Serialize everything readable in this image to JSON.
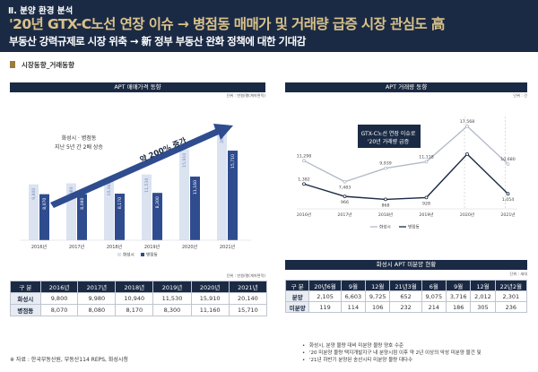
{
  "header": {
    "section": "Ⅱ. 분양 환경 분석",
    "title": "'20년 GTX-C노선 연장 이슈 → 병점동 매매가 및 거래량 급증 시장 관심도 高",
    "subtitle": "부동산 강력규제로 시장 위축 → 新 정부 부동산 완화 정책에 대한 기대감"
  },
  "section_title": "시장동향_거래동향",
  "left_panel": {
    "title": "APT 매매가격 동향",
    "unit": "단위 : 만원/평(계약면적)",
    "annotation_line1": "화성시 · 병점동",
    "annotation_line2": "지난 5년 간 2배 상승",
    "arrow_label": "약 200% 증가",
    "table_unit": "단위 : 만원/평(계약면적)",
    "table": {
      "corner": "구 분",
      "columns": [
        "2016년",
        "2017년",
        "2018년",
        "2019년",
        "2020년",
        "2021년"
      ],
      "rows": [
        {
          "label": "화성시",
          "values": [
            "9,800",
            "9,980",
            "10,940",
            "11,530",
            "15,910",
            "20,140"
          ]
        },
        {
          "label": "병점동",
          "values": [
            "8,070",
            "8,080",
            "8,170",
            "8,300",
            "11,160",
            "15,710"
          ]
        }
      ]
    },
    "source": "※ 자료 : 한국부동산원, 부동산114 REPS, 화성시청"
  },
  "right_panel": {
    "title": "APT 거래량 동향",
    "unit": "단위 : 건",
    "annotation_line1": "GTX-C노선 연장 이슈로",
    "annotation_line2": "'20년 거래량 급증",
    "table_title": "화성시 APT 미분양 현황",
    "table_unit": "단위 : 세대",
    "table": {
      "corner": "구 분",
      "columns": [
        "20년6월",
        "9월",
        "12월",
        "21년3월",
        "6월",
        "9월",
        "12월",
        "22년2월"
      ],
      "rows": [
        {
          "label": "분양",
          "values": [
            "2,105",
            "6,603",
            "9,725",
            "652",
            "9,075",
            "3,716",
            "2,012",
            "2,301"
          ]
        },
        {
          "label": "미분양",
          "values": [
            "119",
            "114",
            "106",
            "232",
            "214",
            "186",
            "305",
            "236"
          ]
        }
      ]
    },
    "notes": [
      "화성시, 분양 물량 대비 미분양 물량 양호 수준",
      "'20 미분양 물량 택지개발지구 내 분양시점 이후 약 2년 이상의 악성 미분양 물건 및",
      "'21년 하반기 분양된 송산시티 미분양 물량 대다수"
    ]
  },
  "colors": {
    "navy": "#1b2a44",
    "gold": "#d9c28a",
    "light_series": "#dbe3f1",
    "light_label": "#7a8bb8",
    "dark_series": "#2f4c8f",
    "line_light": "#b4bac8",
    "line_dark": "#1b2a44"
  },
  "chart_data": [
    {
      "type": "bar",
      "categories": [
        "2016년",
        "2017년",
        "2018년",
        "2019년",
        "2020년",
        "2021년"
      ],
      "series": [
        {
          "name": "화성시",
          "values": [
            9800,
            9980,
            10940,
            11530,
            15910,
            20140
          ],
          "labels": [
            "9,800",
            "9,980",
            "10,940",
            "11,530",
            "15,910",
            "20,140"
          ]
        },
        {
          "name": "병점동",
          "values": [
            8070,
            8080,
            8170,
            8300,
            11160,
            15710
          ],
          "labels": [
            "8,070",
            "8,080",
            "8,170",
            "8,300",
            "11,160",
            "15,710"
          ]
        }
      ],
      "title": "APT 매매가격 동향",
      "legend": "bottom"
    },
    {
      "type": "line",
      "categories": [
        "2016년",
        "2017년",
        "2018년",
        "2019년",
        "2020년",
        "2021년"
      ],
      "series": [
        {
          "name": "화성시",
          "values": [
            11298,
            7483,
            9939,
            11118,
            17568,
            10680
          ],
          "labels": [
            "11,298",
            "7,483",
            "9,939",
            "11,118",
            "17,568",
            "10,680"
          ]
        },
        {
          "name": "병점동",
          "values": [
            1382,
            966,
            868,
            928,
            2383,
            1054
          ],
          "labels": [
            "1,382",
            "966",
            "868",
            "928",
            "2,383",
            "1,054"
          ]
        }
      ],
      "title": "APT 거래량 동향",
      "legend": "bottom"
    }
  ]
}
